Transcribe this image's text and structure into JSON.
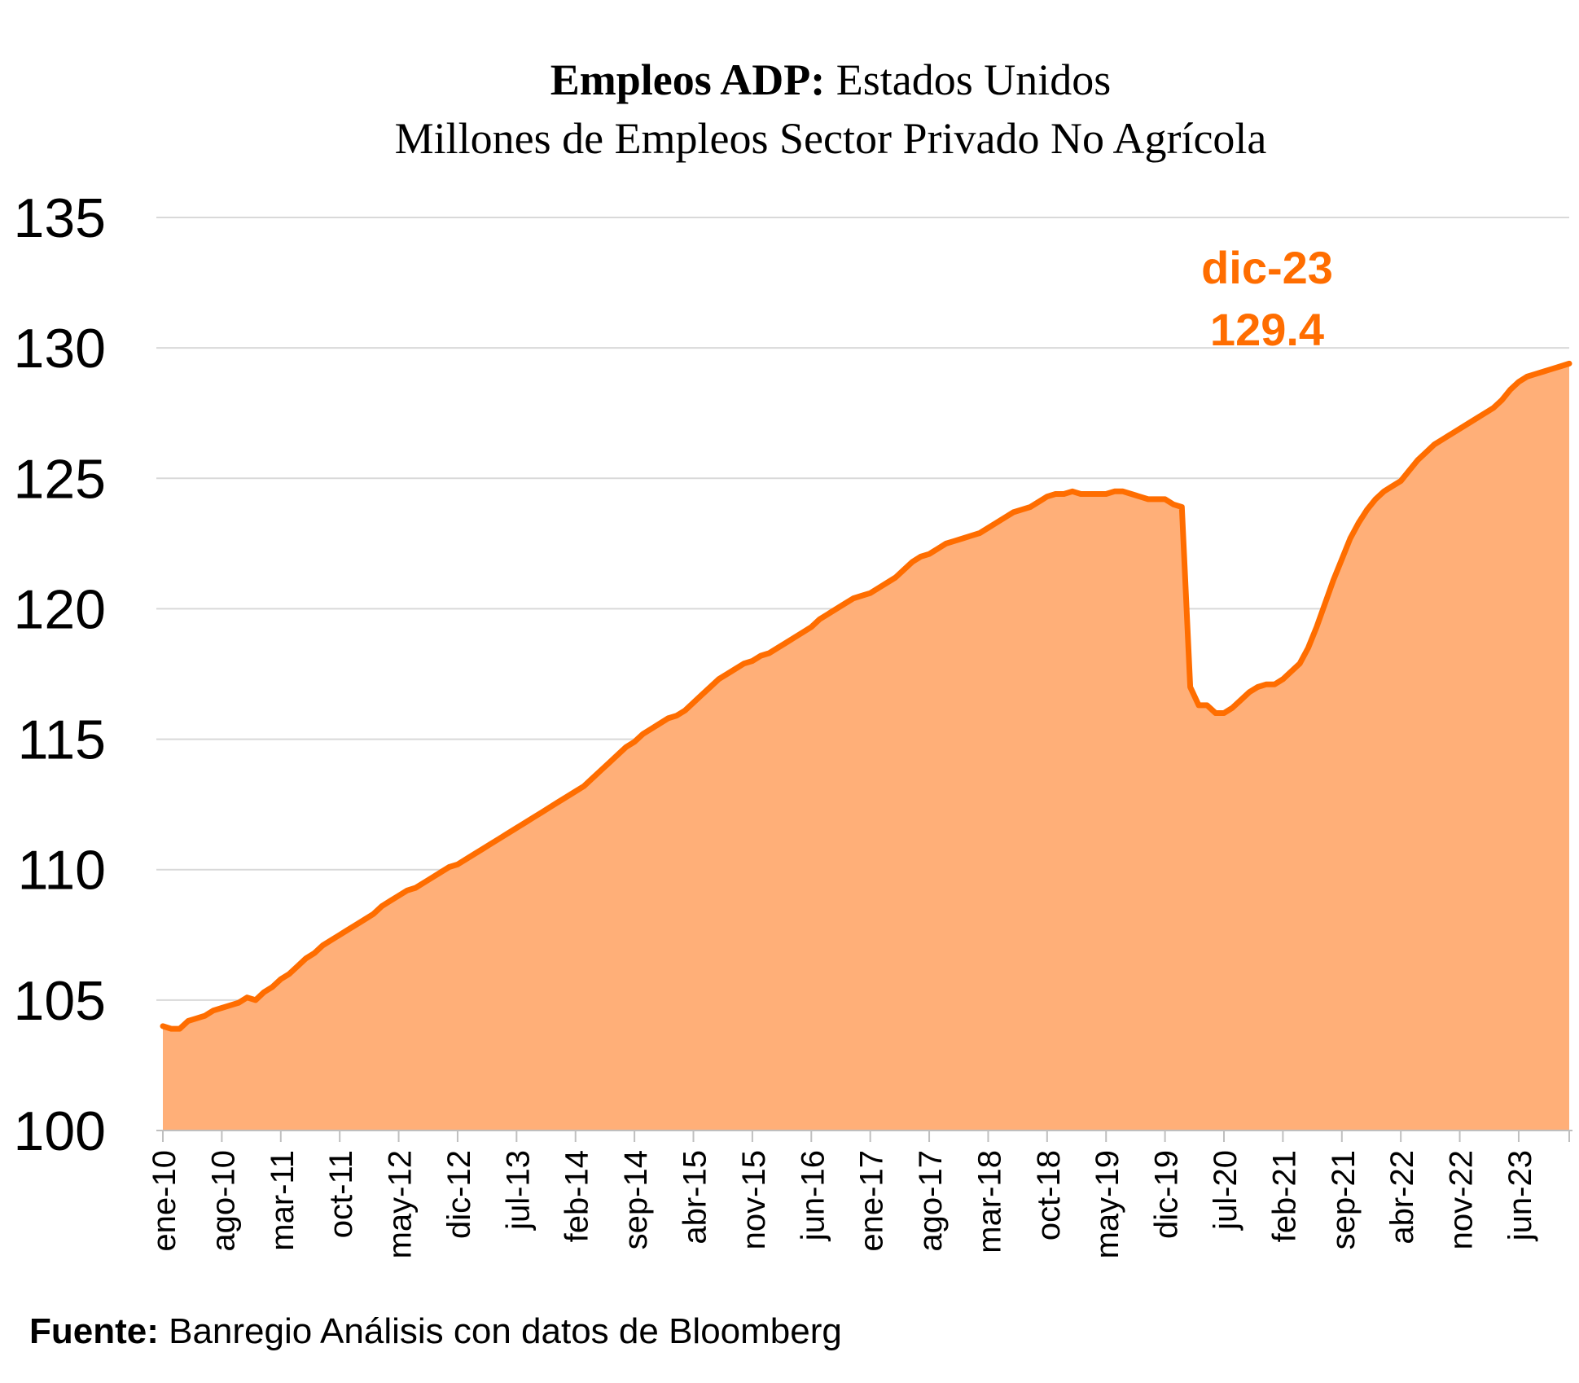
{
  "chart_data": {
    "type": "area",
    "title_bold": "Empleos ADP:",
    "title_rest": "Estados Unidos",
    "subtitle": "Millones de Empleos Sector Privado No Agrícola",
    "ylim": [
      100,
      135
    ],
    "yticks": [
      100,
      105,
      110,
      115,
      120,
      125,
      130,
      135
    ],
    "xtick_labels": [
      "ene-10",
      "ago-10",
      "mar-11",
      "oct-11",
      "may-12",
      "dic-12",
      "jul-13",
      "feb-14",
      "sep-14",
      "abr-15",
      "nov-15",
      "jun-16",
      "ene-17",
      "ago-17",
      "mar-18",
      "oct-18",
      "may-19",
      "dic-19",
      "jul-20",
      "feb-21",
      "sep-21",
      "abr-22",
      "nov-22",
      "jun-23"
    ],
    "grid": true,
    "legend": "none",
    "color": "#FF6D00",
    "fill_color": "#FFAF78",
    "annotation": {
      "label": "dic-23",
      "value": "129.4"
    },
    "series": [
      {
        "values": [
          104.0,
          103.9,
          103.9,
          104.2,
          104.3,
          104.4,
          104.6,
          104.7,
          104.8,
          104.9,
          105.1,
          105.0,
          105.3,
          105.5,
          105.8,
          106.0,
          106.3,
          106.6,
          106.8,
          107.1,
          107.3,
          107.5,
          107.7,
          107.9,
          108.1,
          108.3,
          108.6,
          108.8,
          109.0,
          109.2,
          109.3,
          109.5,
          109.7,
          109.9,
          110.1,
          110.2,
          110.4,
          110.6,
          110.8,
          111.0,
          111.2,
          111.4,
          111.6,
          111.8,
          112.0,
          112.2,
          112.4,
          112.6,
          112.8,
          113.0,
          113.2,
          113.5,
          113.8,
          114.1,
          114.4,
          114.7,
          114.9,
          115.2,
          115.4,
          115.6,
          115.8,
          115.9,
          116.1,
          116.4,
          116.7,
          117.0,
          117.3,
          117.5,
          117.7,
          117.9,
          118.0,
          118.2,
          118.3,
          118.5,
          118.7,
          118.9,
          119.1,
          119.3,
          119.6,
          119.8,
          120.0,
          120.2,
          120.4,
          120.5,
          120.6,
          120.8,
          121.0,
          121.2,
          121.5,
          121.8,
          122.0,
          122.1,
          122.3,
          122.5,
          122.6,
          122.7,
          122.8,
          122.9,
          123.1,
          123.3,
          123.5,
          123.7,
          123.8,
          123.9,
          124.1,
          124.3,
          124.4,
          124.4,
          124.5,
          124.4,
          124.4,
          124.4,
          124.4,
          124.5,
          124.5,
          124.4,
          124.3,
          124.2,
          124.2,
          124.2,
          124.0,
          123.9,
          117.0,
          116.3,
          116.3,
          116.0,
          116.0,
          116.2,
          116.5,
          116.8,
          117.0,
          117.1,
          117.1,
          117.3,
          117.6,
          117.9,
          118.5,
          119.3,
          120.2,
          121.1,
          121.9,
          122.7,
          123.3,
          123.8,
          124.2,
          124.5,
          124.7,
          124.9,
          125.3,
          125.7,
          126.0,
          126.3,
          126.5,
          126.7,
          126.9,
          127.1,
          127.3,
          127.5,
          127.7,
          128.0,
          128.4,
          128.7,
          128.9,
          129.0,
          129.1,
          129.2,
          129.3,
          129.4
        ]
      }
    ]
  },
  "footer": {
    "label": "Fuente:",
    "text": " Banregio Análisis con datos de Bloomberg"
  }
}
